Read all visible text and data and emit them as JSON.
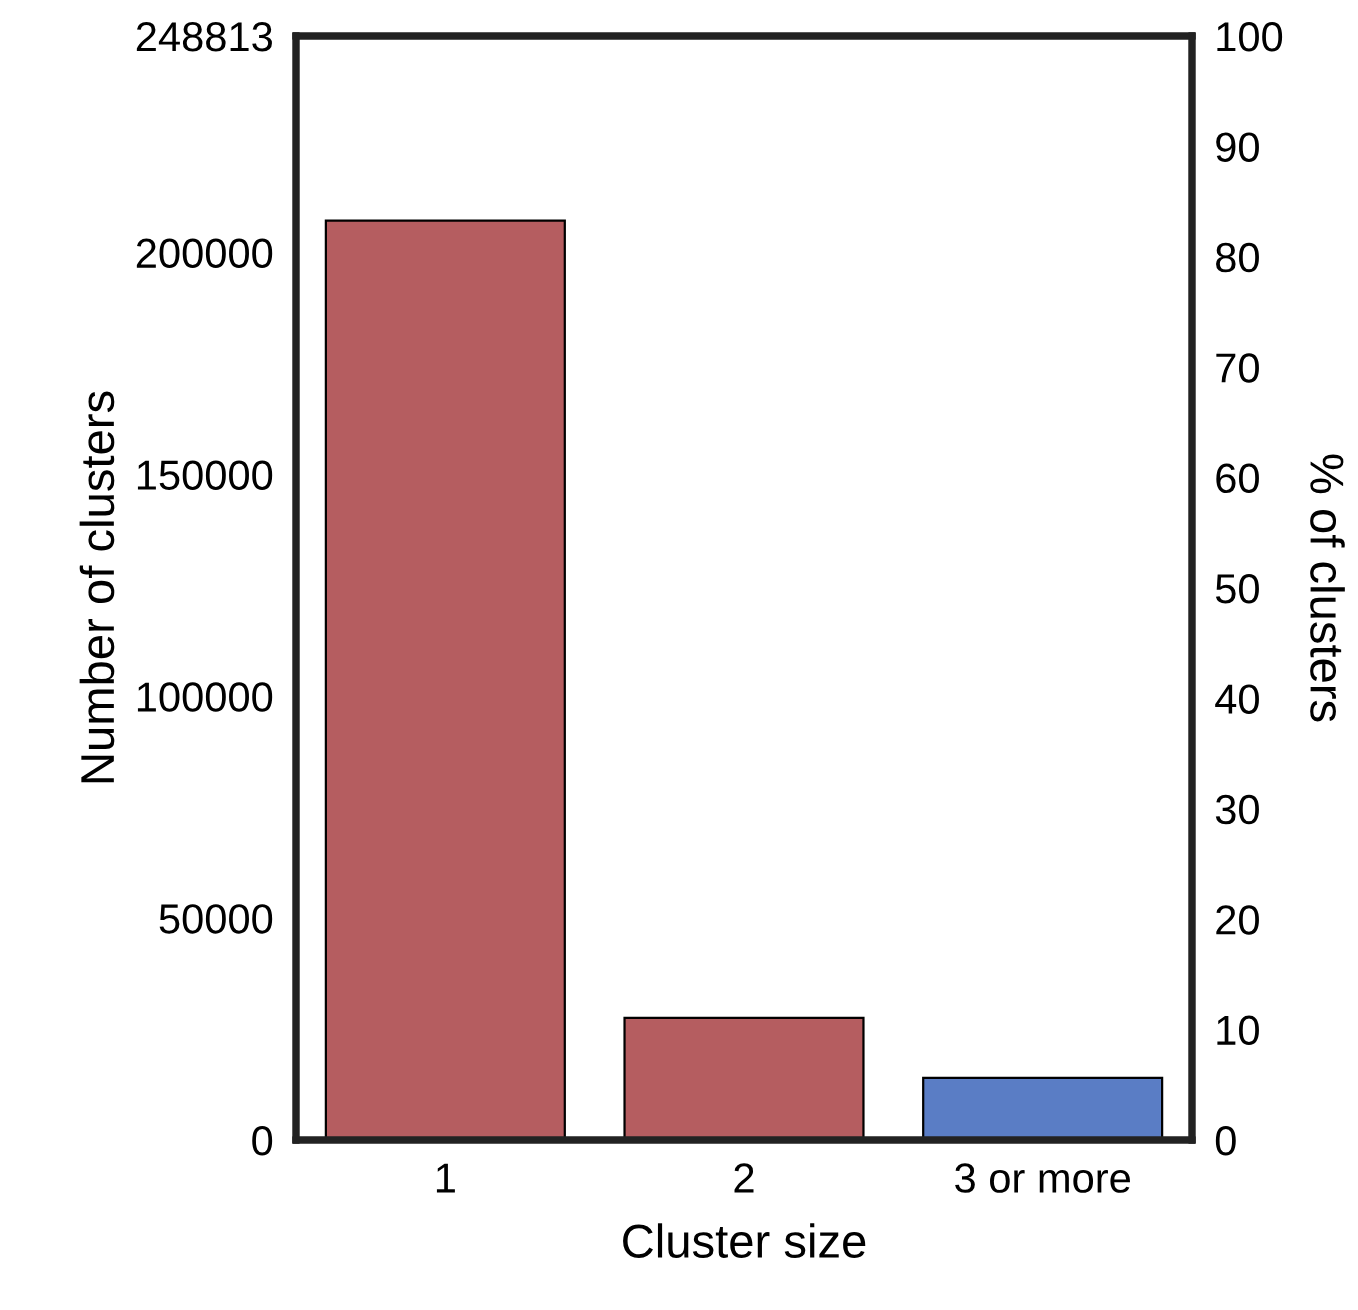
{
  "chart_data": {
    "type": "bar",
    "xlabel": "Cluster size",
    "ylabel": "Number of clusters",
    "y2label": "% of clusters",
    "categories": [
      "1",
      "2",
      "3 or more"
    ],
    "values": [
      207200,
      27500,
      14000
    ],
    "colors": [
      "#b55d60",
      "#b55d60",
      "#5a7dc5"
    ],
    "ylim": [
      0,
      248813
    ],
    "yticks": [
      0,
      50000,
      100000,
      150000,
      200000,
      248813
    ],
    "y2lim": [
      0,
      100
    ],
    "y2ticks": [
      0,
      10,
      20,
      30,
      40,
      50,
      60,
      70,
      80,
      90,
      100
    ],
    "grid": false,
    "legend": false
  }
}
